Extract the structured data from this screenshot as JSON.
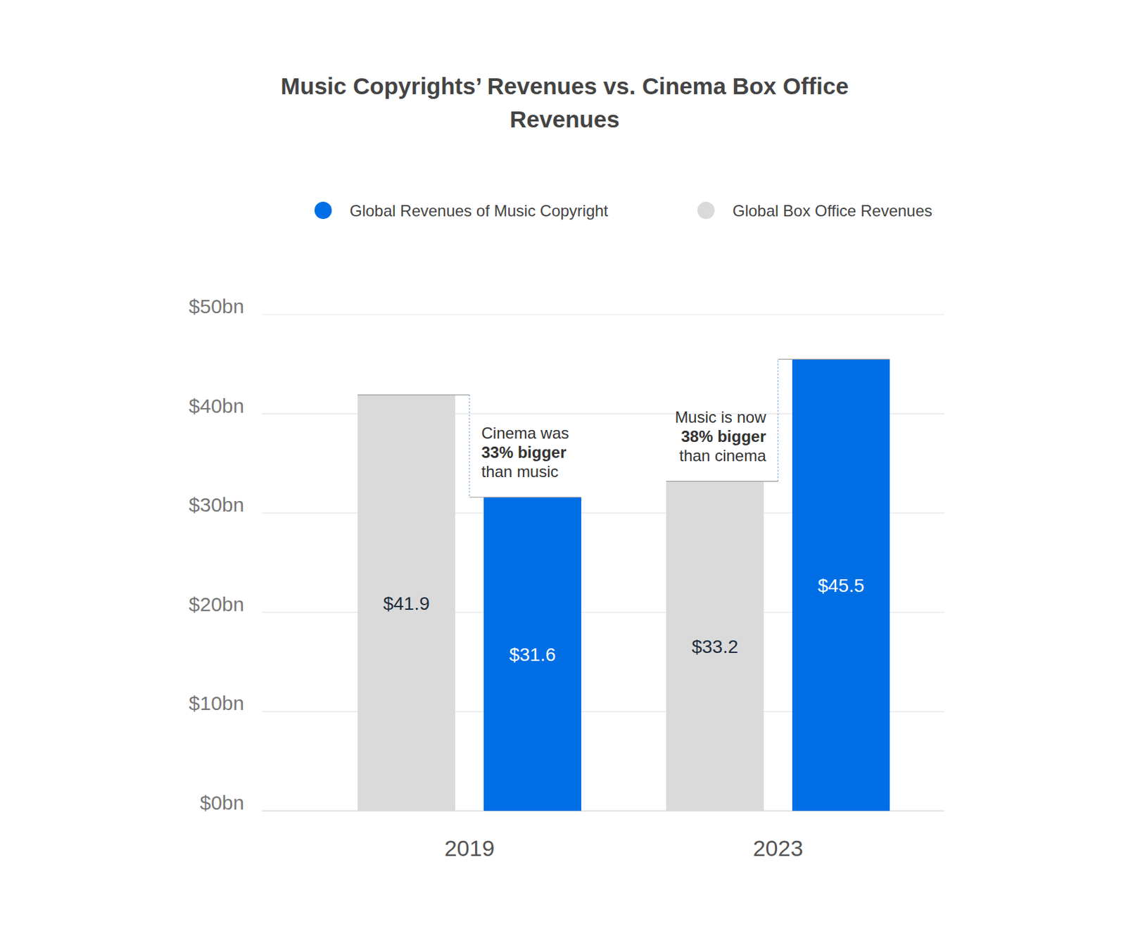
{
  "chart_data": {
    "type": "bar",
    "title": "Music Copyrights’ Revenues vs. Cinema Box Office Revenues",
    "categories": [
      "2019",
      "2023"
    ],
    "series": [
      {
        "name": "Global Box Office Revenues",
        "color": "#dadada",
        "values": [
          41.9,
          33.2
        ],
        "value_labels": [
          "$41.9",
          "$33.2"
        ]
      },
      {
        "name": "Global Revenues of Music Copyright",
        "color": "#006fe6",
        "values": [
          31.6,
          45.5
        ],
        "value_labels": [
          "$31.6",
          "$45.5"
        ]
      }
    ],
    "ylim": [
      0,
      50
    ],
    "yticks": [
      {
        "value": 0,
        "label": "$0bn"
      },
      {
        "value": 10,
        "label": "$10bn"
      },
      {
        "value": 20,
        "label": "$20bn"
      },
      {
        "value": 30,
        "label": "$30bn"
      },
      {
        "value": 40,
        "label": "$40bn"
      },
      {
        "value": 50,
        "label": "$50bn"
      }
    ],
    "grid": true,
    "legend": "top",
    "data_labels": true,
    "annotations": [
      {
        "lines": [
          "Cinema was",
          "33% bigger",
          "than music"
        ]
      },
      {
        "lines": [
          "Music is now",
          "38% bigger",
          "than cinema"
        ]
      }
    ]
  }
}
